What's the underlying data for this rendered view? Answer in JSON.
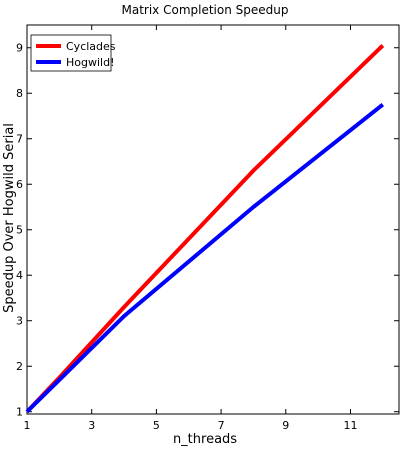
{
  "chart_data": {
    "type": "line",
    "title": "Matrix Completion Speedup",
    "xlabel": "n_threads",
    "ylabel": "Speedup Over Hogwild Serial",
    "xlim": [
      1,
      12.5
    ],
    "ylim": [
      0.95,
      9.5
    ],
    "x_ticks": [
      1,
      3,
      5,
      7,
      9,
      11
    ],
    "y_ticks": [
      1,
      2,
      3,
      4,
      5,
      6,
      7,
      8,
      9
    ],
    "grid": false,
    "legend_position": "top-left",
    "series": [
      {
        "name": "Cyclades",
        "color": "#ff0000",
        "x": [
          1,
          2,
          4,
          8,
          12
        ],
        "y": [
          1.0,
          1.75,
          3.3,
          6.3,
          9.05
        ]
      },
      {
        "name": "Hogwild!",
        "color": "#0000ff",
        "x": [
          1,
          2,
          4,
          8,
          12
        ],
        "y": [
          1.0,
          1.7,
          3.1,
          5.5,
          7.75
        ]
      }
    ]
  }
}
